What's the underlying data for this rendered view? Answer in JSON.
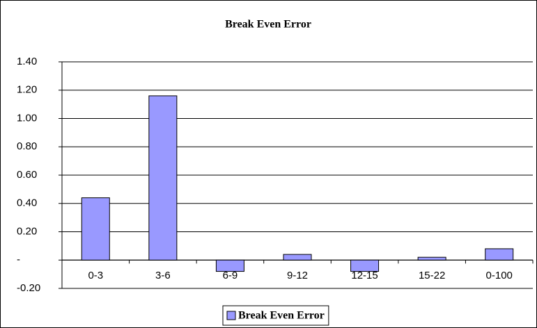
{
  "chart_data": {
    "type": "bar",
    "title": "Break Even Error",
    "categories": [
      "0-3",
      "3-6",
      "6-9",
      "9-12",
      "12-15",
      "15-22",
      "0-100"
    ],
    "series": [
      {
        "name": "Break Even Error",
        "color": "#9999ff",
        "values": [
          0.44,
          1.16,
          -0.08,
          0.04,
          -0.08,
          0.02,
          0.08
        ]
      }
    ],
    "ylim": [
      -0.2,
      1.4
    ],
    "yticks": [
      {
        "value": -0.2,
        "label": "-0.20"
      },
      {
        "value": 0,
        "label": "-"
      },
      {
        "value": 0.2,
        "label": "0.20"
      },
      {
        "value": 0.4,
        "label": "0.40"
      },
      {
        "value": 0.6,
        "label": "0.60"
      },
      {
        "value": 0.8,
        "label": "0.80"
      },
      {
        "value": 1.0,
        "label": "1.00"
      },
      {
        "value": 1.2,
        "label": "1.20"
      },
      {
        "value": 1.4,
        "label": "1.40"
      }
    ],
    "grid": true,
    "legend": "bottom"
  }
}
